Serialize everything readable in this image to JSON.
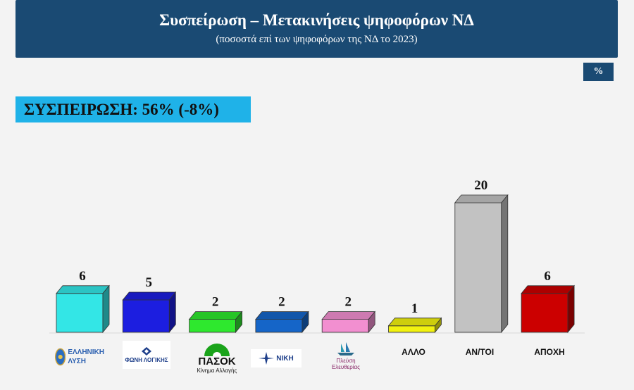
{
  "header": {
    "title": "Συσπείρωση – Μετακινήσεις ψηφοφόρων ΝΔ",
    "subtitle": "(ποσοστά επί των ψηφοφόρων της ΝΔ το 2023)"
  },
  "unit_badge": "%",
  "banner": "ΣΥΣΠΕΙΡΩΣΗ: 56% (-8%)",
  "logos": {
    "elliniki": [
      "ΕΛΛΗΝΙΚΗ",
      "ΛΥΣΗ"
    ],
    "foni": "ΦΩΝΗ ΛΟΓΙΚΗΣ",
    "pasok": "ΠΑΣΟΚ",
    "pasok_sub": "Κίνημα Αλλαγής",
    "niki": "ΝΙΚΗ",
    "plefsi": "Πλεύση Ελευθερίας"
  },
  "chart_data": {
    "type": "bar",
    "categories": [
      "ΕΛΛΗΝΙΚΗ ΛΥΣΗ",
      "ΦΩΝΗ ΛΟΓΙΚΗΣ",
      "ΠΑΣΟΚ",
      "ΝΙΚΗ",
      "Πλεύση Ελευθερίας",
      "ΑΛΛΟ",
      "ΑΝ/ΤΟΙ",
      "ΑΠΟΧΗ"
    ],
    "values": [
      6,
      5,
      2,
      2,
      2,
      1,
      20,
      6
    ],
    "colors": [
      "#33e6e6",
      "#1c1ee0",
      "#2ee82e",
      "#1565c8",
      "#f28fd0",
      "#f2f20f",
      "#c2c2c2",
      "#cc0000"
    ],
    "data_labels": [
      "6",
      "5",
      "2",
      "2",
      "2",
      "1",
      "20",
      "6"
    ],
    "text_category_labels": [
      "ΑΛΛΟ",
      "ΑΝ/ΤΟΙ",
      "ΑΠΟΧΗ"
    ],
    "ylim": [
      0,
      20
    ]
  }
}
